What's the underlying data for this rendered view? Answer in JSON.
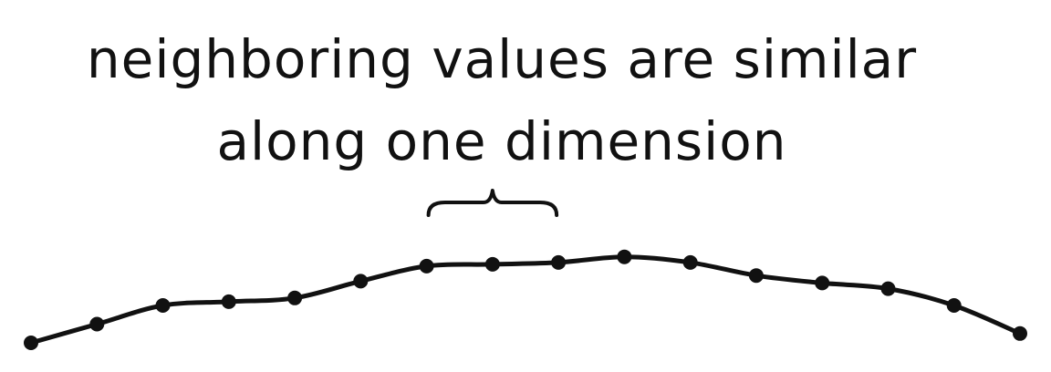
{
  "caption": {
    "line1": "neighboring values are similar",
    "line2": "along one dimension"
  },
  "colors": {
    "ink": "#111111",
    "background": "#ffffff"
  },
  "series": {
    "point_count": 16,
    "values": [
      0.0,
      0.1,
      0.2,
      0.22,
      0.24,
      0.33,
      0.41,
      0.42,
      0.43,
      0.46,
      0.43,
      0.36,
      0.32,
      0.29,
      0.2,
      0.05
    ],
    "bracket_spans_points": [
      6,
      8
    ]
  }
}
